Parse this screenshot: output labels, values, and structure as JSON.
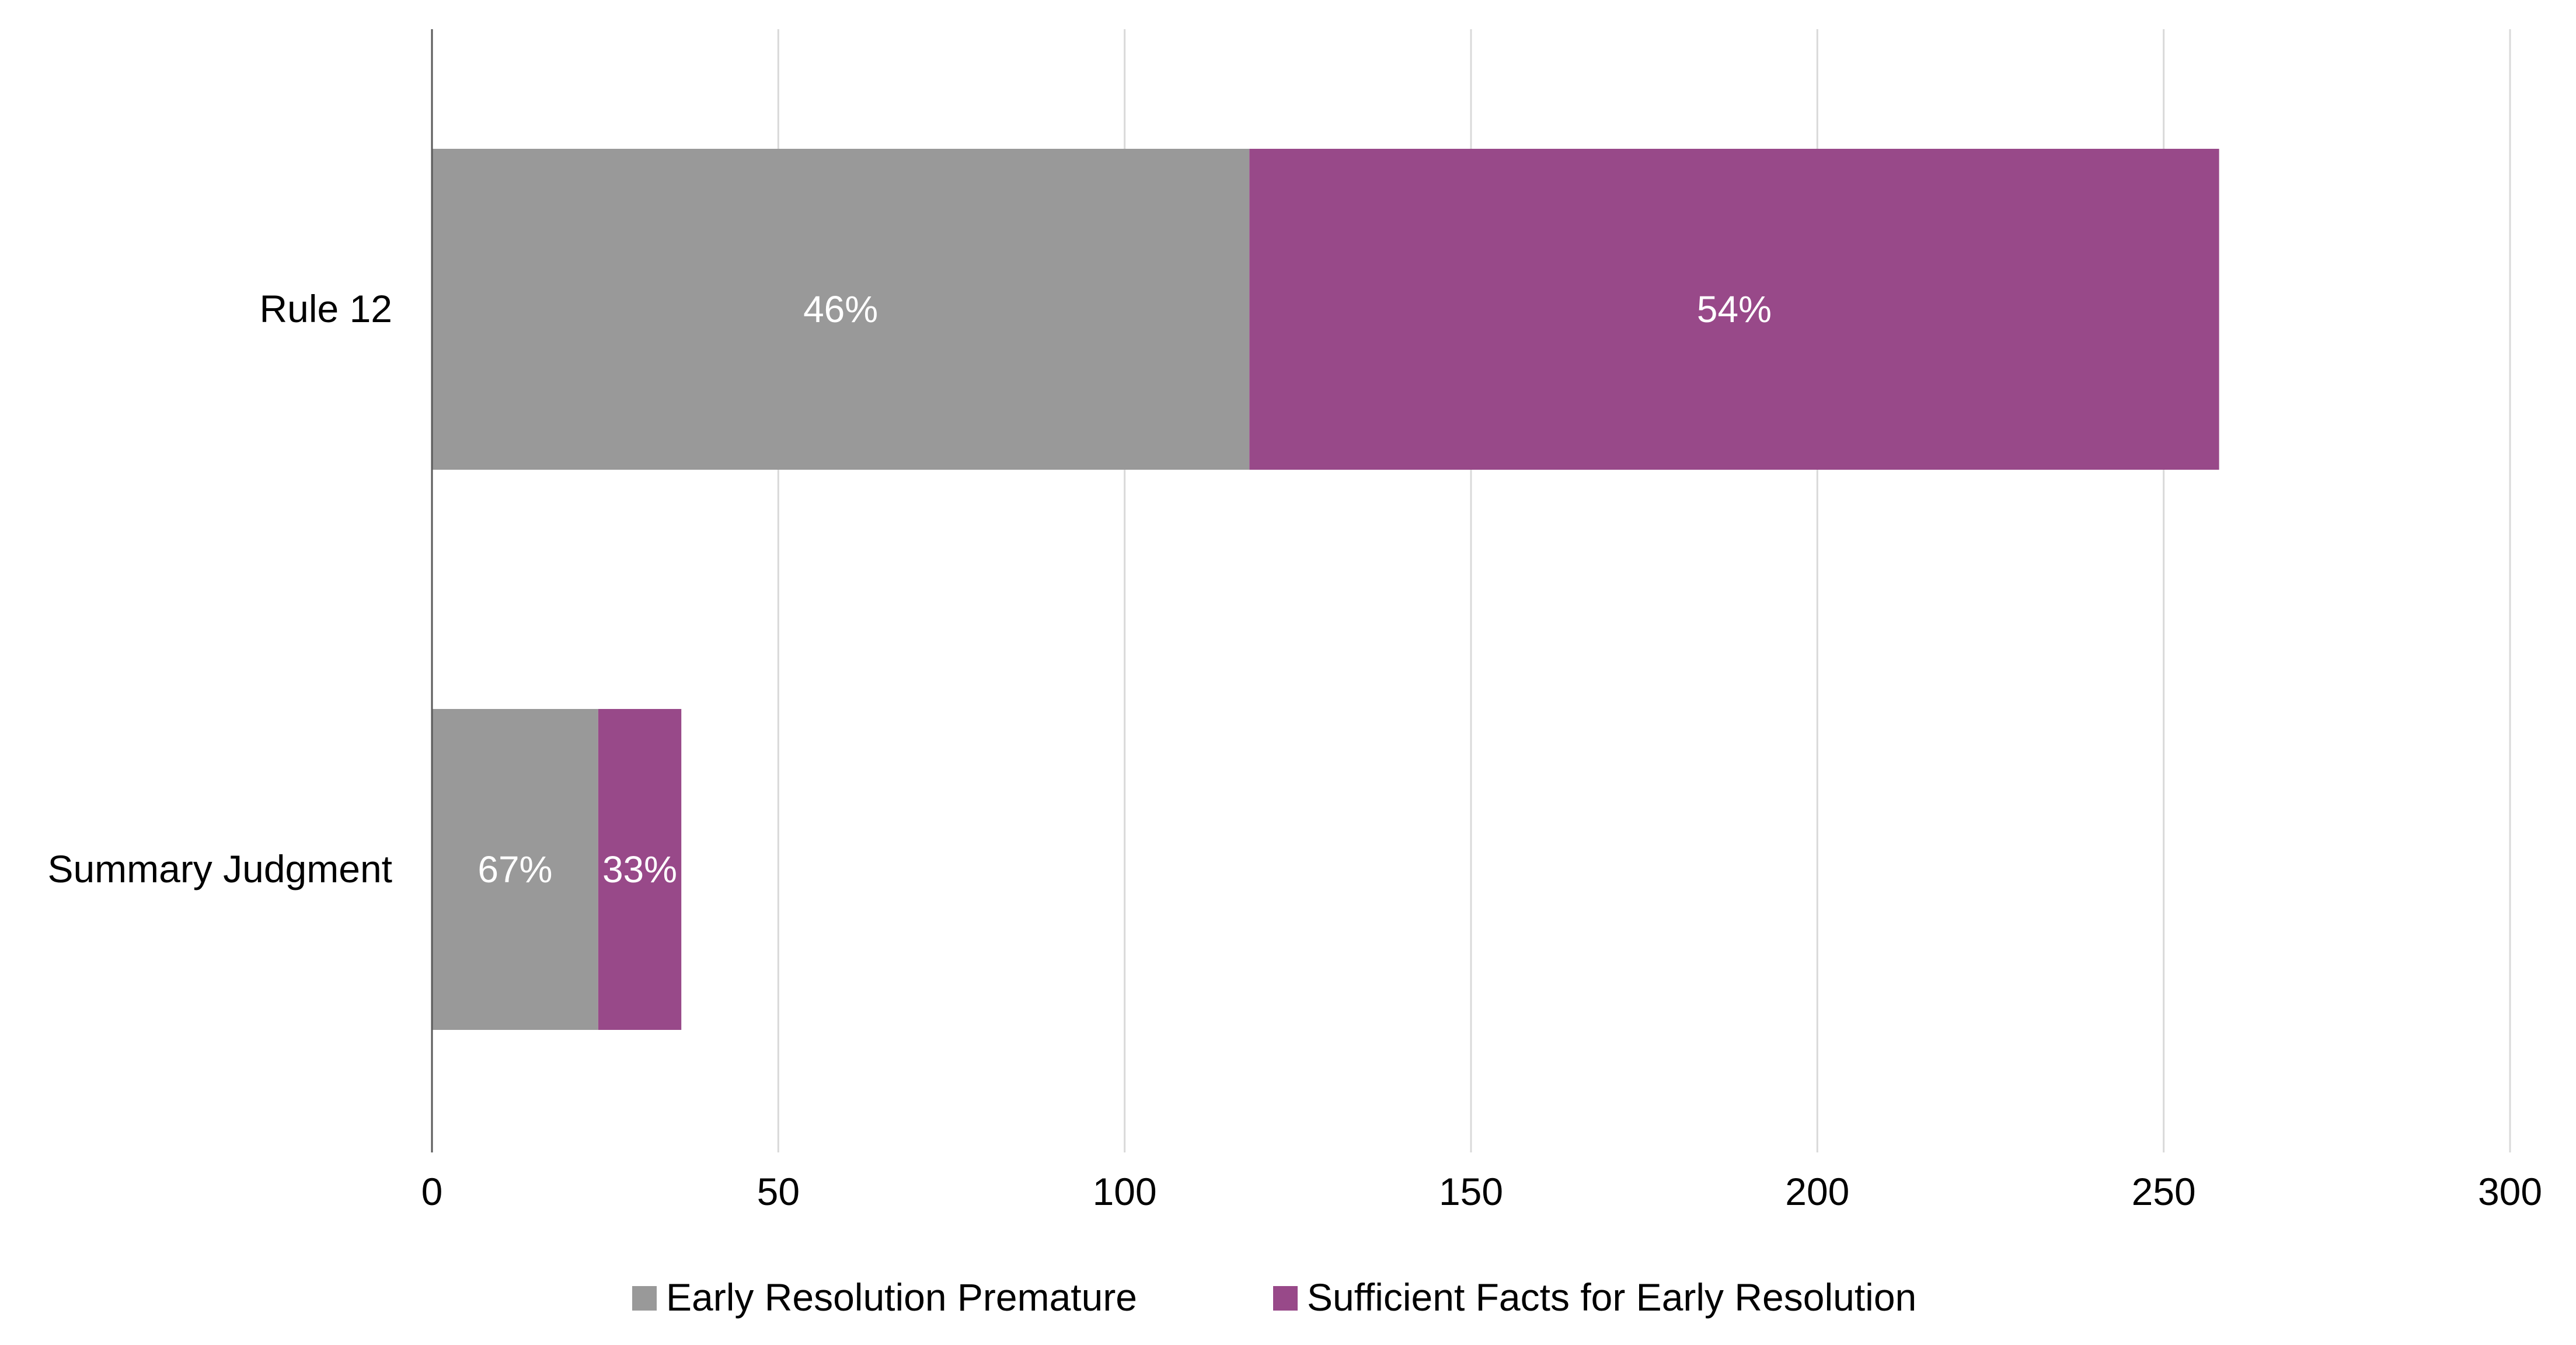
{
  "chart_data": {
    "type": "bar",
    "orientation": "horizontal",
    "stacked": true,
    "title": "",
    "xlabel": "",
    "ylabel": "",
    "categories": [
      "Rule 12",
      "Summary Judgment"
    ],
    "series": [
      {
        "name": "Early Resolution Premature",
        "color": "#999999",
        "values": [
          118,
          24
        ],
        "labels": [
          "46%",
          "67%"
        ]
      },
      {
        "name": "Sufficient Facts for Early Resolution",
        "color": "#984989",
        "values": [
          140,
          12
        ],
        "labels": [
          "54%",
          "33%"
        ]
      }
    ],
    "xlim": [
      0,
      300
    ],
    "xticks": [
      "0",
      "50",
      "100",
      "150",
      "200",
      "250",
      "300"
    ],
    "grid": true,
    "legend_position": "bottom"
  }
}
